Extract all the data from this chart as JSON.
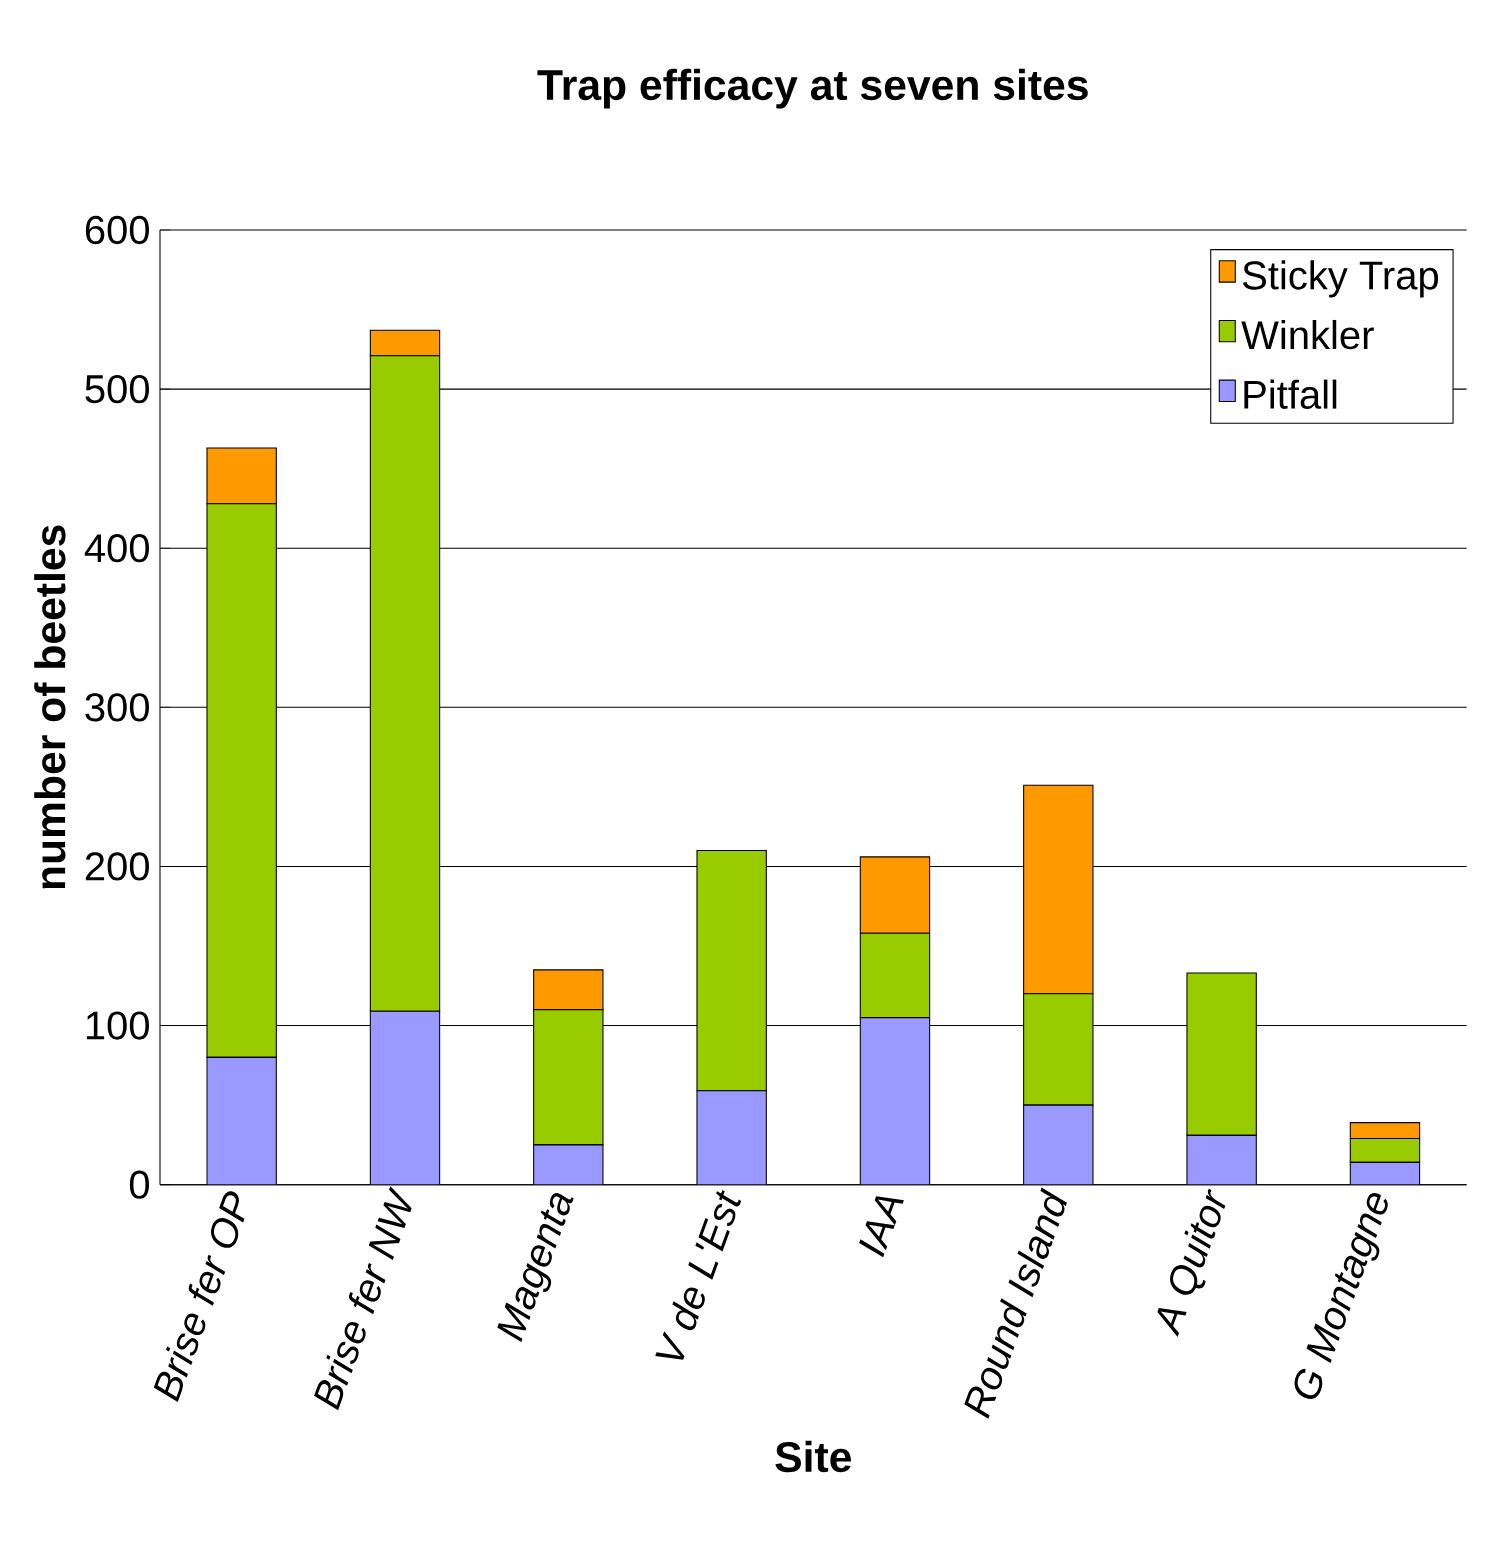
{
  "chart_data": {
    "type": "bar",
    "stacked": true,
    "title": "Trap efficacy at seven sites",
    "xlabel": "Site",
    "ylabel": "number of beetles",
    "categories": [
      "Brise fer OP",
      "Brise fer NW",
      "Magenta",
      "V de L'Est",
      "IAA",
      "Round Island",
      "A Quitor",
      "G Montagne"
    ],
    "series": [
      {
        "name": "Pitfall",
        "color": "#9999ff",
        "values": [
          80,
          109,
          25,
          59,
          105,
          50,
          31,
          14
        ]
      },
      {
        "name": "Winkler",
        "color": "#99cc00",
        "values": [
          348,
          412,
          85,
          151,
          53,
          70,
          102,
          15
        ]
      },
      {
        "name": "Sticky Trap",
        "color": "#ff9900",
        "values": [
          35,
          16,
          25,
          0,
          48,
          131,
          0,
          10
        ]
      }
    ],
    "ylim": [
      0,
      600
    ],
    "yticks": [
      0,
      100,
      200,
      300,
      400,
      500,
      600
    ],
    "grid": "y",
    "legend": "top right"
  }
}
